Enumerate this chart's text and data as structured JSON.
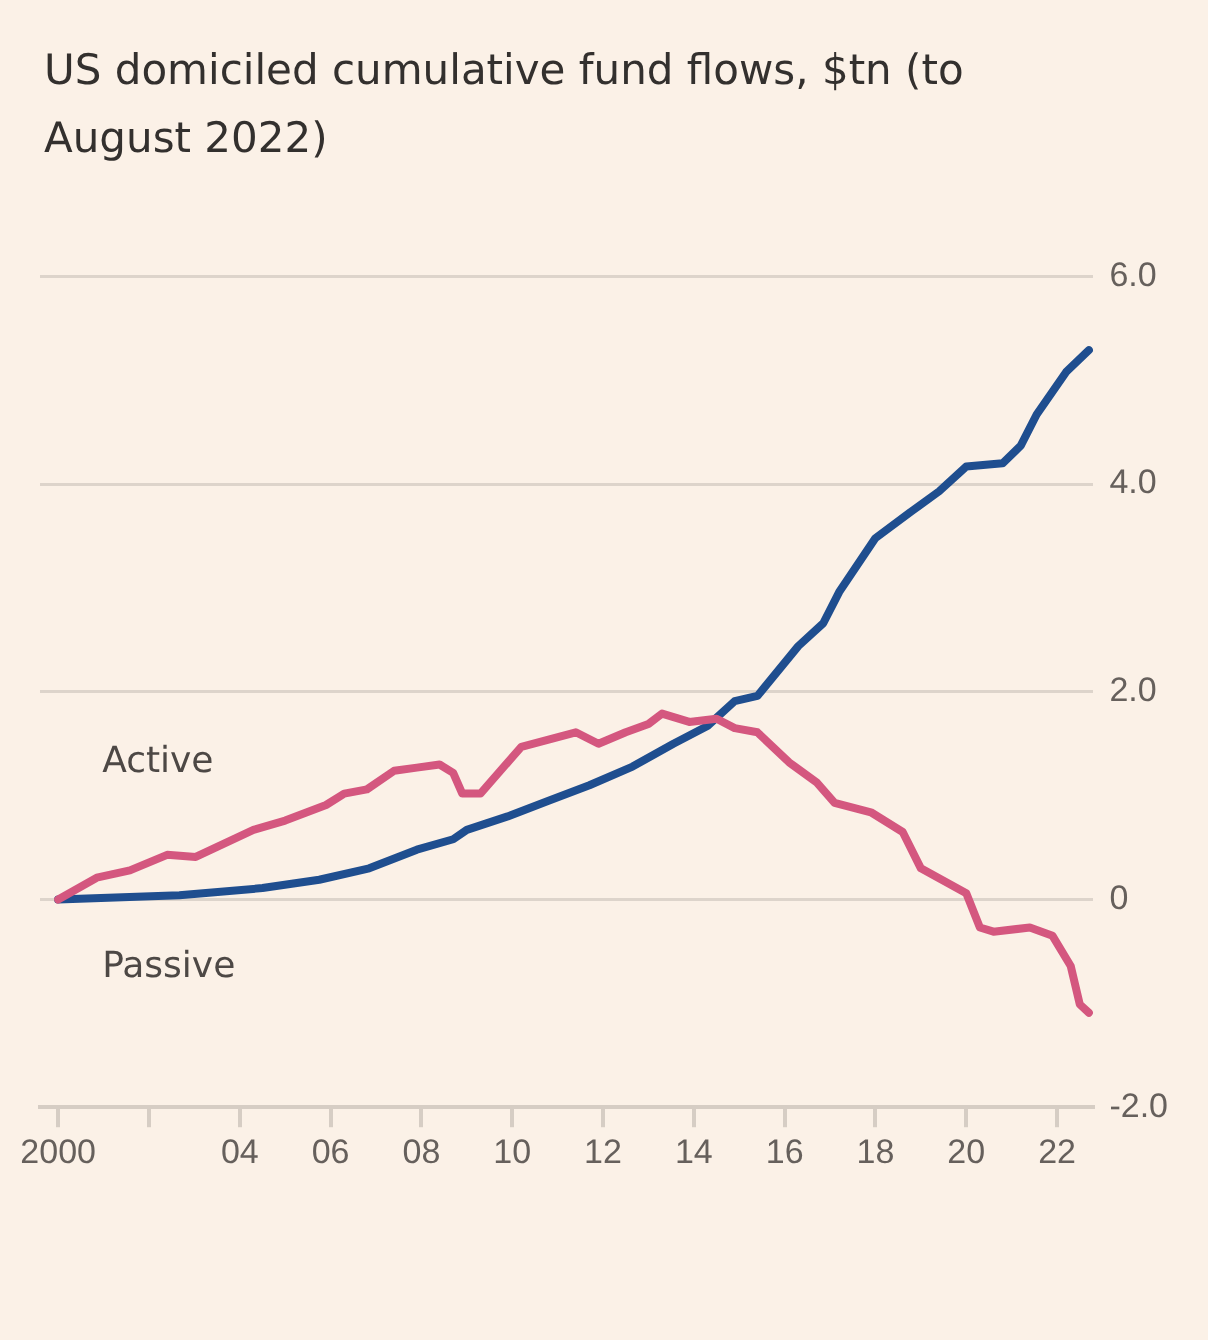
{
  "chart_data": {
    "type": "line",
    "title": "US domiciled cumulative fund flows, $tn (to August 2022)",
    "xlim": [
      1999.6,
      2022.8
    ],
    "xticks": [
      {
        "value": 2000,
        "label": "2000"
      },
      {
        "value": 2002,
        "label": null
      },
      {
        "value": 2004,
        "label": "04"
      },
      {
        "value": 2006,
        "label": "06"
      },
      {
        "value": 2008,
        "label": "08"
      },
      {
        "value": 2010,
        "label": "10"
      },
      {
        "value": 2012,
        "label": "12"
      },
      {
        "value": 2014,
        "label": "14"
      },
      {
        "value": 2016,
        "label": "16"
      },
      {
        "value": 2018,
        "label": "18"
      },
      {
        "value": 2020,
        "label": "20"
      },
      {
        "value": 2022,
        "label": "22"
      }
    ],
    "ylim": [
      -2,
      6
    ],
    "yticks": [
      {
        "value": -2,
        "label": "-2.0"
      },
      {
        "value": 0,
        "label": "0"
      },
      {
        "value": 2,
        "label": "2.0"
      },
      {
        "value": 4,
        "label": "4.0"
      },
      {
        "value": 6,
        "label": "6.0"
      }
    ],
    "grid": "y",
    "legend": false,
    "marker": "none",
    "line_style": "solid",
    "series": [
      {
        "name": "Active",
        "color": "#d4577f",
        "x": [
          2000,
          2000.85,
          2001.58,
          2002.4,
          2003.03,
          2004.3,
          2005.0,
          2005.9,
          2006.3,
          2006.8,
          2007.4,
          2007.9,
          2008.4,
          2008.7,
          2008.9,
          2009.3,
          2010.2,
          2010.8,
          2011.4,
          2011.9,
          2012.5,
          2013.0,
          2013.3,
          2013.9,
          2014.5,
          2014.9,
          2015.4,
          2016.1,
          2016.7,
          2017.1,
          2017.9,
          2018.6,
          2019.0,
          2020.0,
          2020.3,
          2020.6,
          2021.4,
          2021.9,
          2022.3,
          2022.5,
          2022.7
        ],
        "values": [
          0,
          0.21,
          0.28,
          0.43,
          0.41,
          0.67,
          0.76,
          0.91,
          1.02,
          1.06,
          1.24,
          1.27,
          1.3,
          1.22,
          1.02,
          1.02,
          1.47,
          1.54,
          1.61,
          1.5,
          1.61,
          1.69,
          1.79,
          1.71,
          1.74,
          1.65,
          1.61,
          1.32,
          1.13,
          0.93,
          0.84,
          0.65,
          0.3,
          0.06,
          -0.27,
          -0.31,
          -0.27,
          -0.35,
          -0.64,
          -1.01,
          -1.09
        ]
      },
      {
        "name": "Passive",
        "color": "#1f4e8f",
        "x": [
          2000,
          2002.67,
          2004.5,
          2005.75,
          2006.85,
          2007.9,
          2008.7,
          2009.0,
          2009.9,
          2010.8,
          2011.7,
          2012.65,
          2013.55,
          2014.3,
          2014.9,
          2015.4,
          2016.3,
          2016.85,
          2017.2,
          2018.0,
          2018.8,
          2019.4,
          2020.0,
          2020.8,
          2021.2,
          2021.55,
          2022.2,
          2022.7
        ],
        "values": [
          0,
          0.04,
          0.11,
          0.19,
          0.3,
          0.48,
          0.58,
          0.67,
          0.8,
          0.95,
          1.1,
          1.28,
          1.5,
          1.67,
          1.91,
          1.96,
          2.44,
          2.66,
          2.96,
          3.48,
          3.74,
          3.93,
          4.17,
          4.2,
          4.37,
          4.67,
          5.08,
          5.29
        ]
      }
    ]
  }
}
